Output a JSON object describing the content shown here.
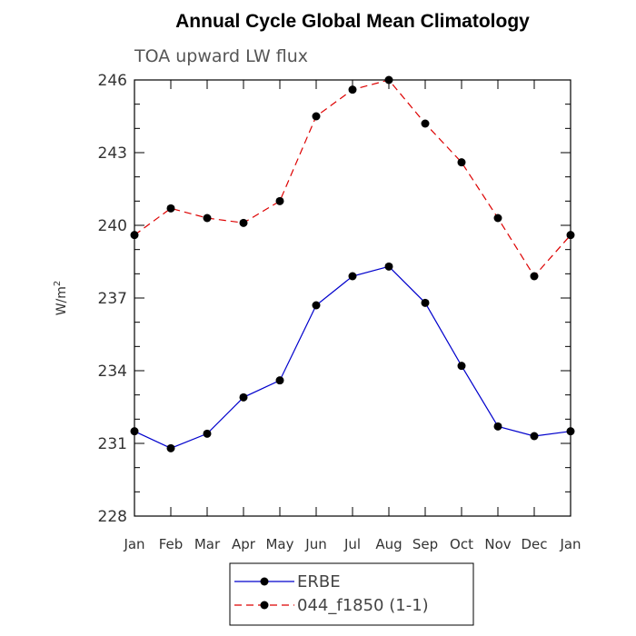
{
  "chart_data": {
    "type": "line",
    "title": "Annual Cycle Global Mean Climatology",
    "subtitle": "TOA upward LW flux",
    "ylabel": "W/m",
    "ylabel_superscript": "2",
    "ylim": [
      228,
      246
    ],
    "yticks": [
      "228",
      "231",
      "234",
      "237",
      "240",
      "243",
      "246"
    ],
    "categories": [
      "Jan",
      "Feb",
      "Mar",
      "Apr",
      "May",
      "Jun",
      "Jul",
      "Aug",
      "Sep",
      "Oct",
      "Nov",
      "Dec",
      "Jan"
    ],
    "series": [
      {
        "name": "ERBE",
        "color": "#0000cc",
        "dash": "solid",
        "values": [
          231.5,
          230.8,
          231.4,
          232.9,
          233.6,
          236.7,
          237.9,
          238.3,
          236.8,
          234.2,
          231.7,
          231.3,
          231.5
        ]
      },
      {
        "name": "044_f1850 (1-1)",
        "color": "#dd0000",
        "dash": "dashed",
        "values": [
          239.6,
          240.7,
          240.3,
          240.1,
          241.0,
          244.5,
          245.6,
          246.0,
          244.2,
          242.6,
          240.3,
          237.9,
          239.6
        ]
      }
    ],
    "grid": false,
    "legend_position": "bottom-center"
  }
}
